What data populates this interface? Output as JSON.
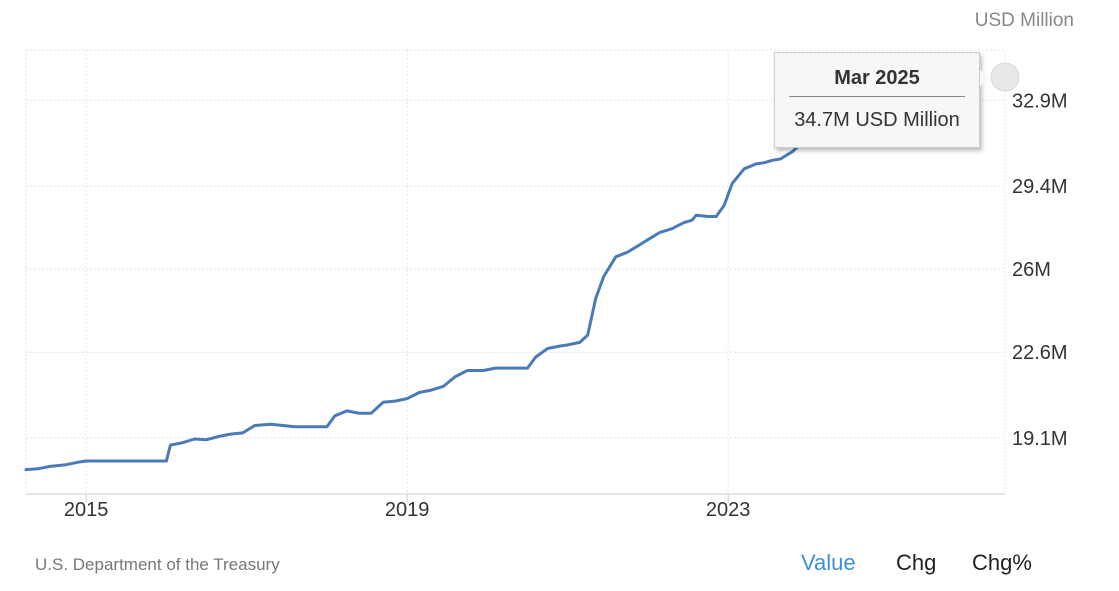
{
  "unit_label": "USD Million",
  "source": "U.S. Department of the Treasury",
  "tabs": {
    "value": "Value",
    "chg": "Chg",
    "chg_pct": "Chg%"
  },
  "tooltip": {
    "title": "Mar 2025",
    "value": "34.7M USD Million"
  },
  "colors": {
    "line": "#4a7ab8",
    "grid": "#e6e6e6",
    "active_tab": "#3d8fd6"
  },
  "chart_data": {
    "type": "line",
    "title": "",
    "xlabel": "",
    "ylabel": "USD Million",
    "x_ticks": [
      "2015",
      "2019",
      "2023"
    ],
    "y_ticks": [
      "19.1M",
      "22.6M",
      "26M",
      "29.4M",
      "32.9M"
    ],
    "y_tick_values": [
      19.1,
      22.6,
      26.0,
      29.4,
      32.9
    ],
    "xlim": [
      2014.25,
      2026.45
    ],
    "ylim": [
      16.8,
      34.96
    ],
    "grid": true,
    "series": [
      {
        "values": [
          [
            2014.25,
            17.8
          ],
          [
            2014.4,
            17.83
          ],
          [
            2014.55,
            17.93
          ],
          [
            2014.75,
            18.0
          ],
          [
            2014.9,
            18.1
          ],
          [
            2015.0,
            18.15
          ],
          [
            2015.12,
            18.15
          ],
          [
            2015.3,
            18.15
          ],
          [
            2015.5,
            18.15
          ],
          [
            2015.7,
            18.15
          ],
          [
            2015.85,
            18.15
          ],
          [
            2016.0,
            18.15
          ],
          [
            2016.05,
            18.8
          ],
          [
            2016.2,
            18.9
          ],
          [
            2016.35,
            19.05
          ],
          [
            2016.5,
            19.02
          ],
          [
            2016.65,
            19.15
          ],
          [
            2016.8,
            19.25
          ],
          [
            2016.95,
            19.3
          ],
          [
            2017.1,
            19.6
          ],
          [
            2017.3,
            19.65
          ],
          [
            2017.45,
            19.6
          ],
          [
            2017.6,
            19.55
          ],
          [
            2017.8,
            19.55
          ],
          [
            2018.0,
            19.55
          ],
          [
            2018.1,
            20.0
          ],
          [
            2018.25,
            20.2
          ],
          [
            2018.4,
            20.1
          ],
          [
            2018.55,
            20.1
          ],
          [
            2018.7,
            20.55
          ],
          [
            2018.85,
            20.6
          ],
          [
            2019.0,
            20.7
          ],
          [
            2019.15,
            20.95
          ],
          [
            2019.3,
            21.05
          ],
          [
            2019.45,
            21.2
          ],
          [
            2019.6,
            21.6
          ],
          [
            2019.75,
            21.85
          ],
          [
            2019.95,
            21.85
          ],
          [
            2020.1,
            21.95
          ],
          [
            2020.3,
            21.95
          ],
          [
            2020.5,
            21.95
          ],
          [
            2020.6,
            22.4
          ],
          [
            2020.75,
            22.75
          ],
          [
            2020.9,
            22.85
          ],
          [
            2021.0,
            22.9
          ],
          [
            2021.15,
            23.0
          ],
          [
            2021.25,
            23.3
          ],
          [
            2021.35,
            24.8
          ],
          [
            2021.45,
            25.7
          ],
          [
            2021.6,
            26.5
          ],
          [
            2021.75,
            26.7
          ],
          [
            2021.9,
            27.0
          ],
          [
            2022.0,
            27.2
          ],
          [
            2022.15,
            27.5
          ],
          [
            2022.3,
            27.65
          ],
          [
            2022.45,
            27.9
          ],
          [
            2022.55,
            28.0
          ],
          [
            2022.6,
            28.2
          ],
          [
            2022.75,
            28.15
          ],
          [
            2022.85,
            28.15
          ],
          [
            2022.95,
            28.6
          ],
          [
            2023.05,
            29.5
          ],
          [
            2023.2,
            30.1
          ],
          [
            2023.35,
            30.3
          ],
          [
            2023.45,
            30.35
          ],
          [
            2023.55,
            30.45
          ],
          [
            2023.65,
            30.5
          ],
          [
            2023.8,
            30.8
          ],
          [
            2023.9,
            31.1
          ],
          [
            2024.0,
            31.35
          ],
          [
            2024.15,
            31.45
          ],
          [
            2024.3,
            31.45
          ],
          [
            2024.45,
            31.45
          ],
          [
            2024.6,
            31.45
          ],
          [
            2024.75,
            31.45
          ],
          [
            2024.85,
            31.45
          ]
        ]
      }
    ]
  }
}
